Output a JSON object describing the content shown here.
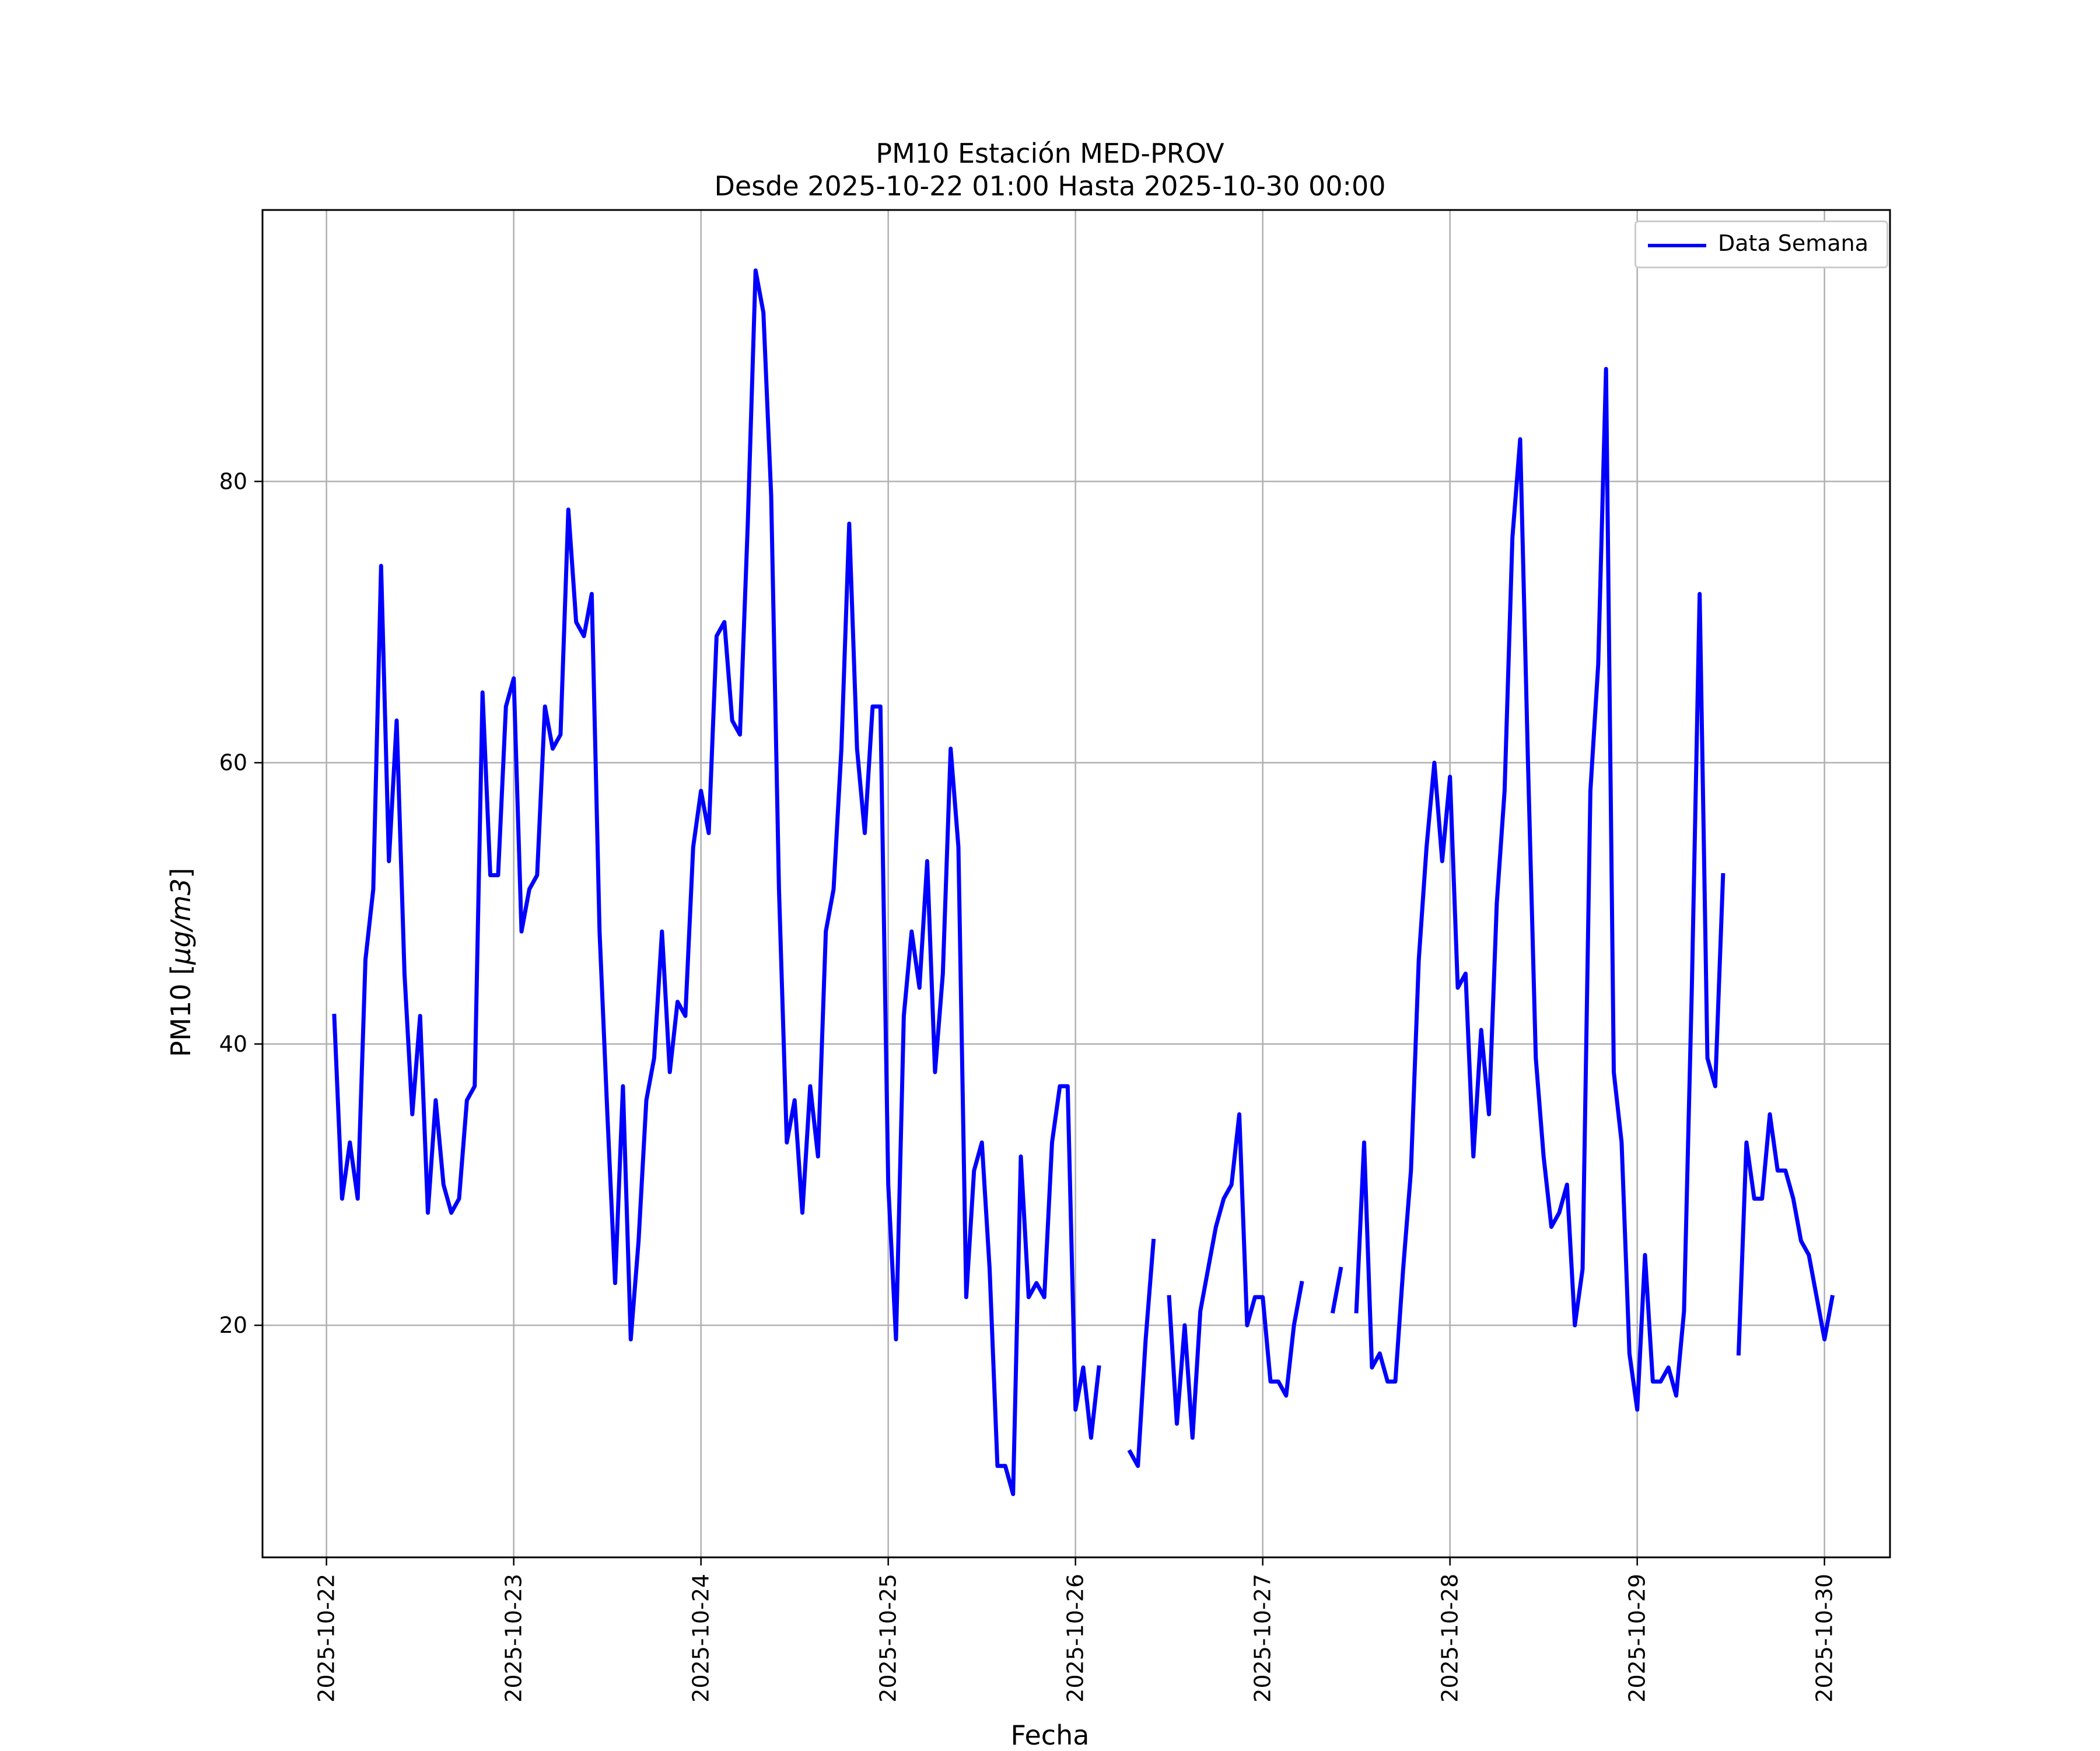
{
  "chart_data": {
    "type": "line",
    "title": "PM10 Estación MED-PROV",
    "subtitle": "Desde 2025-10-22 01:00 Hasta 2025-10-30 00:00",
    "xlabel": "Fecha",
    "ylabel_text": "PM10 [",
    "ylabel_unit": "µg/m3",
    "ylabel_close": "]",
    "x_ticks": [
      "2025-10-22",
      "2025-10-23",
      "2025-10-24",
      "2025-10-25",
      "2025-10-26",
      "2025-10-27",
      "2025-10-28",
      "2025-10-29",
      "2025-10-30"
    ],
    "y_ticks": [
      20,
      40,
      60,
      80
    ],
    "xlim": [
      "2025-10-21 15:48",
      "2025-10-30 08:24"
    ],
    "ylim": [
      3.5,
      99.3
    ],
    "grid": true,
    "legend_position": "top-right",
    "colors": {
      "series": "#0000ff",
      "grid": "#b0b0b0"
    },
    "series": [
      {
        "name": "Data Semana",
        "start": "2025-10-22 01:00",
        "step_hours": 1,
        "values": [
          42,
          29,
          33,
          29,
          46,
          51,
          74,
          53,
          63,
          45,
          35,
          42,
          28,
          36,
          30,
          28,
          29,
          36,
          37,
          65,
          52,
          52,
          64,
          66,
          48,
          51,
          52,
          64,
          61,
          62,
          78,
          70,
          69,
          72,
          48,
          35,
          23,
          37,
          19,
          26,
          36,
          39,
          48,
          38,
          43,
          42,
          54,
          58,
          55,
          69,
          70,
          63,
          62,
          77,
          95,
          92,
          79,
          51,
          33,
          36,
          28,
          37,
          32,
          48,
          51,
          61,
          77,
          61,
          55,
          64,
          64,
          30,
          19,
          42,
          48,
          44,
          53,
          38,
          45,
          61,
          54,
          22,
          31,
          33,
          24,
          10,
          10,
          8,
          32,
          22,
          23,
          22,
          33,
          37,
          37,
          14,
          17,
          12,
          17,
          null,
          null,
          null,
          11,
          10,
          19,
          26,
          null,
          22,
          13,
          20,
          12,
          21,
          24,
          27,
          29,
          30,
          35,
          20,
          22,
          22,
          16,
          16,
          15,
          20,
          23,
          null,
          null,
          null,
          21,
          24,
          null,
          21,
          33,
          17,
          18,
          16,
          16,
          24,
          31,
          46,
          54,
          60,
          53,
          59,
          44,
          45,
          32,
          41,
          35,
          50,
          58,
          76,
          83,
          60,
          39,
          32,
          27,
          28,
          30,
          20,
          24,
          58,
          67,
          88,
          38,
          33,
          18,
          14,
          25,
          16,
          16,
          17,
          15,
          21,
          44,
          72,
          39,
          37,
          52,
          null,
          18,
          33,
          29,
          29,
          35,
          31,
          31,
          29,
          26,
          25,
          22,
          19,
          22
        ]
      }
    ]
  }
}
